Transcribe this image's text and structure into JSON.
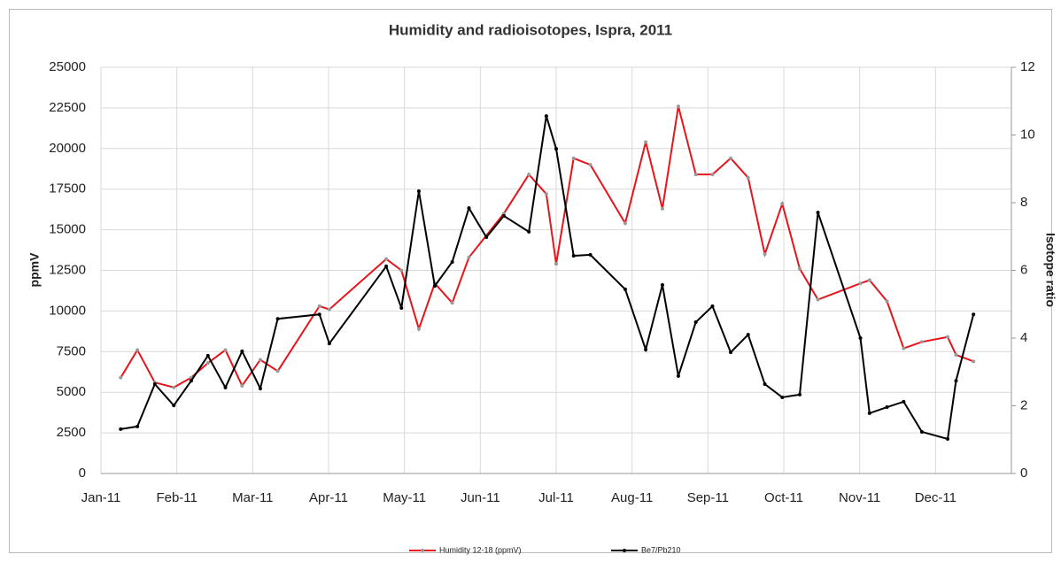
{
  "chart_data": {
    "type": "line",
    "title": "Humidity and radioisotopes, Ispra, 2011",
    "ylabel": "ppmV",
    "y2label": "Isotope ratio",
    "xlim": [
      0,
      12
    ],
    "xticks": [
      {
        "value": 0,
        "label": "Jan-11"
      },
      {
        "value": 1,
        "label": "Feb-11"
      },
      {
        "value": 2,
        "label": "Mar-11"
      },
      {
        "value": 3,
        "label": "Apr-11"
      },
      {
        "value": 4,
        "label": "May-11"
      },
      {
        "value": 5,
        "label": "Jun-11"
      },
      {
        "value": 6,
        "label": "Jul-11"
      },
      {
        "value": 7,
        "label": "Aug-11"
      },
      {
        "value": 8,
        "label": "Sep-11"
      },
      {
        "value": 9,
        "label": "Oct-11"
      },
      {
        "value": 10,
        "label": "Nov-11"
      },
      {
        "value": 11,
        "label": "Dec-11"
      }
    ],
    "ylim": [
      0,
      25000
    ],
    "yticks": [
      0,
      2500,
      5000,
      7500,
      10000,
      12500,
      15000,
      17500,
      20000,
      22500,
      25000
    ],
    "y2lim": [
      0,
      12
    ],
    "y2ticks": [
      0,
      2,
      4,
      6,
      8,
      10,
      12
    ],
    "grid": true,
    "legend": "bottom",
    "series": [
      {
        "name": "Humidity 12-18 (ppmV)",
        "color": "#e8141b",
        "x": [
          0.26,
          0.48,
          0.71,
          0.96,
          1.19,
          1.41,
          1.64,
          1.86,
          2.1,
          2.33,
          2.88,
          3.01,
          3.76,
          3.96,
          4.19,
          4.4,
          4.63,
          4.85,
          5.31,
          5.64,
          5.87,
          6.0,
          6.23,
          6.45,
          6.91,
          7.18,
          7.4,
          7.61,
          7.84,
          8.06,
          8.3,
          8.53,
          8.75,
          8.98,
          9.21,
          9.45,
          10.01,
          10.13,
          10.36,
          10.58,
          10.82,
          11.16,
          11.27,
          11.5
        ],
        "values": [
          5900,
          7600,
          5600,
          5300,
          5900,
          6800,
          7600,
          5400,
          7000,
          6300,
          10300,
          10100,
          13200,
          12500,
          8900,
          11700,
          10500,
          13300,
          16000,
          18400,
          17200,
          12900,
          19400,
          19000,
          15400,
          20400,
          16300,
          22600,
          18400,
          18400,
          19400,
          18200,
          13500,
          16600,
          12600,
          10700,
          11700,
          11900,
          10600,
          7700,
          8100,
          8400,
          7300,
          6900
        ]
      },
      {
        "name": "Be7/Pb210",
        "color": "#000000",
        "axis": "y2",
        "x": [
          0.26,
          0.48,
          0.71,
          0.96,
          1.19,
          1.41,
          1.64,
          1.86,
          2.1,
          2.33,
          2.88,
          3.01,
          3.76,
          3.96,
          4.19,
          4.4,
          4.63,
          4.85,
          5.08,
          5.31,
          5.64,
          5.87,
          6.0,
          6.23,
          6.45,
          6.91,
          7.18,
          7.4,
          7.61,
          7.84,
          8.06,
          8.3,
          8.53,
          8.75,
          8.98,
          9.21,
          9.45,
          10.01,
          10.13,
          10.36,
          10.58,
          10.82,
          11.16,
          11.27,
          11.5
        ],
        "values": [
          1.31,
          1.39,
          2.64,
          2.01,
          2.74,
          3.48,
          2.54,
          3.61,
          2.51,
          4.57,
          4.7,
          3.84,
          6.12,
          4.89,
          8.34,
          5.54,
          6.25,
          7.84,
          6.98,
          7.61,
          7.14,
          10.56,
          9.59,
          6.43,
          6.46,
          5.44,
          3.66,
          5.57,
          2.88,
          4.47,
          4.94,
          3.58,
          4.1,
          2.64,
          2.25,
          2.33,
          7.71,
          4.0,
          1.78,
          1.96,
          2.12,
          1.23,
          1.02,
          2.74,
          4.7
        ]
      }
    ]
  }
}
